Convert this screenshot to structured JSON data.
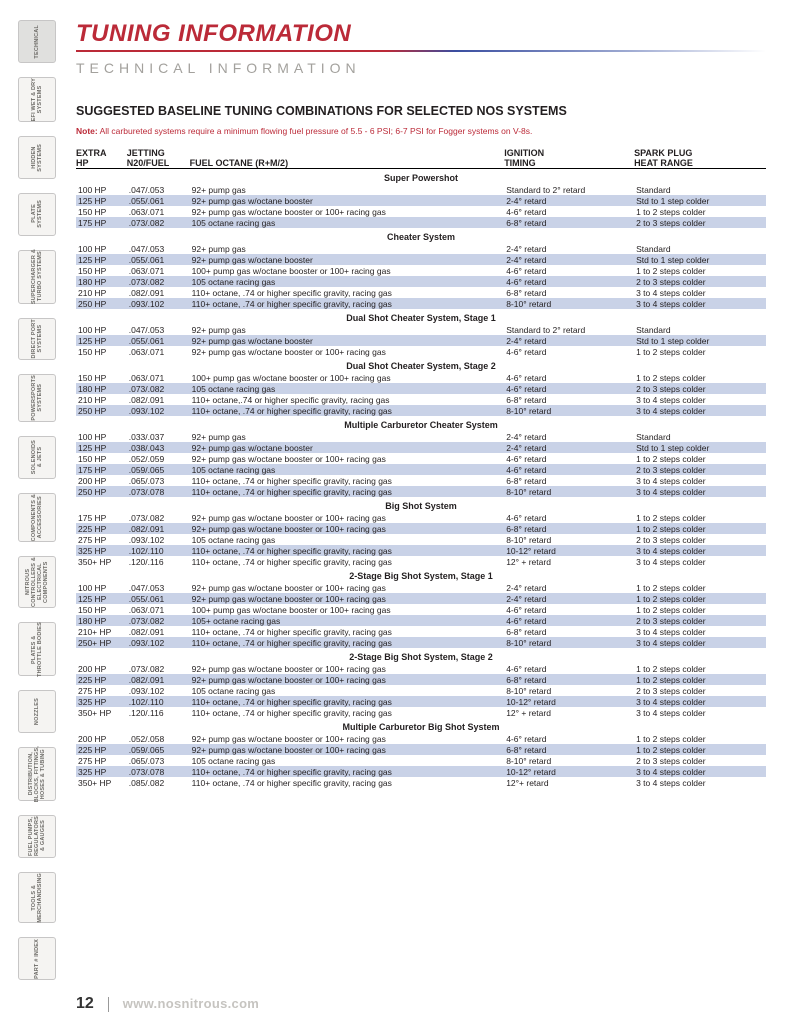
{
  "title": "TUNING INFORMATION",
  "title_color": "#bb2a38",
  "subtitle": "TECHNICAL INFORMATION",
  "h2": "SUGGESTED BASELINE TUNING COMBINATIONS FOR SELECTED NOS SYSTEMS",
  "note_label": "Note:",
  "note_body": " All carbureted systems require a minimum flowing fuel pressure of 5.5 - 6 PSI; 6-7 PSI for Fogger systems on V-8s.",
  "page_num": "12",
  "url": "www.nosnitrous.com",
  "sidebar": [
    "TECHNICAL",
    "EFI WET & DRY\nSYSTEMS",
    "HIDDEN\nSYSTEMS",
    "PLATE\nSYSTEMS",
    "SUPERCHARGER &\nTURBO SYSTEMS",
    "DIRECT PORT\nSYSTEMS",
    "POWERSPORTS\nSYSTEMS",
    "SOLENOIDS\n& JETS",
    "COMPONENTS &\nACCESSORIES",
    "NITROUS\nCONTROLLERS &\nELECTRICAL\nCOMPONENTS",
    "PLATES &\nTHROTTLE BODIES",
    "NOZZLES",
    "DISTRIBUTION,\nBLOCKS, FITTINGS,\nHOSES & TUBING",
    "FUEL PUMPS,\nREGULATORS\n& GAUGES",
    "TOOLS &\nMERCHANDISING",
    "PART # INDEX"
  ],
  "columns": [
    {
      "l1": "EXTRA",
      "l2": "HP"
    },
    {
      "l1": "JETTING",
      "l2": "N20/FUEL"
    },
    {
      "l1": "",
      "l2": "FUEL OCTANE (R+M/2)"
    },
    {
      "l1": "IGNITION",
      "l2": "TIMING"
    },
    {
      "l1": "SPARK PLUG",
      "l2": "HEAT RANGE"
    }
  ],
  "sections": [
    {
      "title": "Super Powershot",
      "rows": [
        [
          "100 HP",
          ".047/.053",
          "92+ pump gas",
          "Standard to 2° retard",
          "Standard"
        ],
        [
          "125 HP",
          ".055/.061",
          "92+ pump gas w/octane booster",
          "2-4° retard",
          "Std to 1 step colder"
        ],
        [
          "150 HP",
          ".063/.071",
          "92+ pump gas w/octane booster or 100+ racing gas",
          "4-6° retard",
          "1 to 2 steps colder"
        ],
        [
          "175 HP",
          ".073/.082",
          "105 octane racing gas",
          "6-8° retard",
          "2 to 3 steps colder"
        ]
      ]
    },
    {
      "title": "Cheater System",
      "rows": [
        [
          "100 HP",
          ".047/.053",
          "92+ pump gas",
          "2-4° retard",
          "Standard"
        ],
        [
          "125 HP",
          ".055/.061",
          "92+ pump gas w/octane booster",
          "2-4° retard",
          "Std to 1 step colder"
        ],
        [
          "150 HP",
          ".063/.071",
          "100+ pump gas w/octane booster or 100+ racing gas",
          "4-6° retard",
          "1 to 2 steps colder"
        ],
        [
          "180 HP",
          ".073/.082",
          "105 octane racing gas",
          "4-6° retard",
          "2 to 3 steps colder"
        ],
        [
          "210 HP",
          ".082/.091",
          "110+ octane, .74 or higher specific gravity, racing gas",
          "6-8° retard",
          "3 to 4 steps colder"
        ],
        [
          "250 HP",
          ".093/.102",
          "110+ octane, .74 or higher specific gravity, racing gas",
          "8-10° retard",
          "3 to 4 steps colder"
        ]
      ]
    },
    {
      "title": "Dual Shot Cheater System, Stage 1",
      "rows": [
        [
          "100 HP",
          ".047/.053",
          "92+ pump gas",
          "Standard to 2° retard",
          "Standard"
        ],
        [
          "125 HP",
          ".055/.061",
          "92+ pump gas w/octane booster",
          "2-4° retard",
          "Std to 1 step colder"
        ],
        [
          "150 HP",
          ".063/.071",
          "92+ pump gas w/octane booster or 100+ racing gas",
          "4-6° retard",
          "1 to 2 steps colder"
        ]
      ]
    },
    {
      "title": "Dual Shot Cheater System, Stage 2",
      "rows": [
        [
          "150 HP",
          ".063/.071",
          "100+ pump gas w/octane booster or 100+ racing gas",
          "4-6° retard",
          "1 to 2 steps colder"
        ],
        [
          "180 HP",
          ".073/.082",
          "105 octane racing gas",
          "4-6° retard",
          "2 to 3 steps colder"
        ],
        [
          "210 HP",
          ".082/.091",
          "110+ octane,.74 or higher specific gravity, racing gas",
          "6-8° retard",
          "3 to 4 steps colder"
        ],
        [
          "250 HP",
          ".093/.102",
          "110+ octane, .74 or higher specific gravity, racing gas",
          "8-10° retard",
          "3 to 4 steps colder"
        ]
      ]
    },
    {
      "title": "Multiple Carburetor Cheater System",
      "rows": [
        [
          "100 HP",
          ".033/.037",
          "92+ pump gas",
          "2-4° retard",
          "Standard"
        ],
        [
          "125 HP",
          ".038/.043",
          "92+ pump gas w/octane booster",
          "2-4° retard",
          "Std to 1 step colder"
        ],
        [
          "150 HP",
          ".052/.059",
          "92+ pump gas w/octane booster or 100+ racing gas",
          "4-6° retard",
          "1 to 2 steps colder"
        ],
        [
          "175 HP",
          ".059/.065",
          "105 octane racing gas",
          "4-6° retard",
          "2 to 3 steps colder"
        ],
        [
          "200 HP",
          ".065/.073",
          "110+ octane, .74 or higher specific gravity, racing gas",
          "6-8° retard",
          "3 to 4 steps colder"
        ],
        [
          "250 HP",
          ".073/.078",
          "110+ octane, .74 or higher specific gravity, racing gas",
          "8-10° retard",
          "3 to 4 steps colder"
        ]
      ]
    },
    {
      "title": "Big Shot System",
      "rows": [
        [
          "175 HP",
          ".073/.082",
          "92+ pump gas w/octane booster or 100+ racing gas",
          "4-6° retard",
          "1 to 2 steps colder"
        ],
        [
          "225 HP",
          ".082/.091",
          "92+ pump gas w/octane booster or 100+ racing gas",
          "6-8° retard",
          "1 to 2 steps colder"
        ],
        [
          "275 HP",
          ".093/.102",
          "105 octane racing gas",
          "8-10° retard",
          "2 to 3 steps colder"
        ],
        [
          "325 HP",
          ".102/.110",
          "110+ octane, .74 or higher specific gravity, racing gas",
          "10-12° retard",
          "3 to 4 steps colder"
        ],
        [
          "350+ HP",
          ".120/.116",
          "110+ octane, .74 or higher specific gravity, racing gas",
          "12° + retard",
          "3 to 4 steps colder"
        ]
      ]
    },
    {
      "title": "2-Stage Big Shot System, Stage 1",
      "rows": [
        [
          "100 HP",
          ".047/.053",
          "92+ pump gas w/octane booster or 100+ racing gas",
          "2-4° retard",
          "1 to 2 steps colder"
        ],
        [
          "125 HP",
          ".055/.061",
          "92+ pump gas w/octane booster or 100+ racing gas",
          "2-4° retard",
          "1 to 2 steps colder"
        ],
        [
          "150 HP",
          ".063/.071",
          "100+ pump gas w/octane booster or 100+ racing gas",
          "4-6° retard",
          "1 to 2 steps colder"
        ],
        [
          "180 HP",
          ".073/.082",
          "105+ octane racing gas",
          "4-6° retard",
          "2 to 3 steps colder"
        ],
        [
          "210+ HP",
          ".082/.091",
          "110+ octane, .74 or higher specific gravity, racing gas",
          "6-8° retard",
          "3 to 4 steps colder"
        ],
        [
          "250+ HP",
          ".093/.102",
          "110+ octane, .74 or higher specific gravity, racing gas",
          "8-10° retard",
          "3 to 4 steps colder"
        ]
      ]
    },
    {
      "title": "2-Stage Big Shot System, Stage 2",
      "rows": [
        [
          "200 HP",
          ".073/.082",
          "92+ pump gas w/octane booster or 100+ racing gas",
          "4-6° retard",
          "1 to 2 steps colder"
        ],
        [
          "225 HP",
          ".082/.091",
          "92+ pump gas w/octane booster or 100+ racing gas",
          "6-8° retard",
          "1 to 2 steps colder"
        ],
        [
          "275 HP",
          ".093/.102",
          "105 octane racing gas",
          "8-10° retard",
          "2 to 3 steps colder"
        ],
        [
          "325 HP",
          ".102/.110",
          "110+ octane, .74 or higher specific gravity, racing gas",
          "10-12° retard",
          "3 to 4 steps colder"
        ],
        [
          "350+ HP",
          ".120/.116",
          "110+ octane, .74 or higher specific gravity, racing gas",
          "12° + retard",
          "3 to 4 steps colder"
        ]
      ]
    },
    {
      "title": "Multiple Carburetor Big Shot System",
      "rows": [
        [
          "200 HP",
          ".052/.058",
          "92+ pump gas w/octane booster or 100+ racing gas",
          "4-6° retard",
          "1 to 2 steps colder"
        ],
        [
          "225 HP",
          ".059/.065",
          "92+ pump gas w/octane booster or 100+ racing gas",
          "6-8° retard",
          "1 to 2 steps colder"
        ],
        [
          "275 HP",
          ".065/.073",
          "105 octane racing gas",
          "8-10° retard",
          "2 to 3 steps colder"
        ],
        [
          "325 HP",
          ".073/.078",
          "110+ octane, .74 or higher specific gravity, racing gas",
          "10-12° retard",
          "3 to 4 steps colder"
        ],
        [
          "350+ HP",
          ".085/.082",
          "110+ octane, .74 or higher specific gravity, racing gas",
          "12°+ retard",
          "3 to 4 steps colder"
        ]
      ]
    }
  ]
}
